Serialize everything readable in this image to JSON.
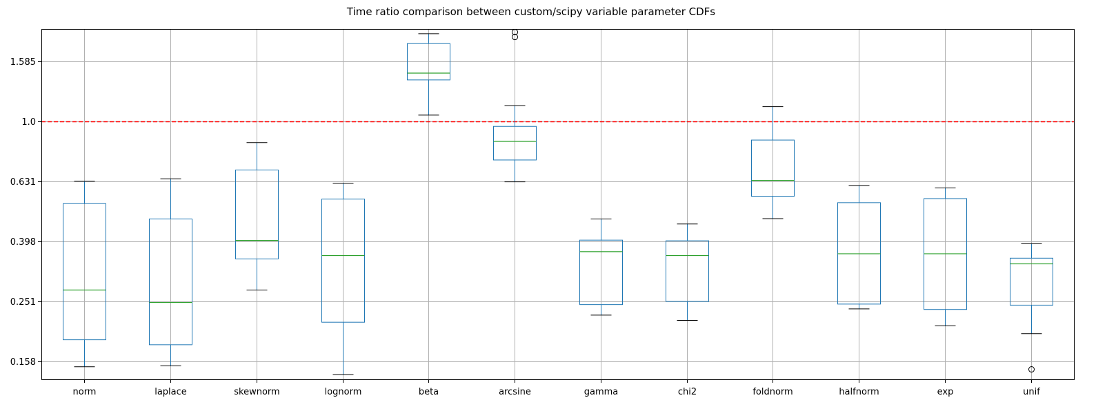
{
  "chart_data": {
    "type": "box",
    "title": "Time ratio comparison between custom/scipy variable parameter CDFs",
    "yscale": "log",
    "ylim": [
      0.138,
      2.035
    ],
    "y_ticks": [
      0.158,
      0.251,
      0.398,
      0.631,
      1.0,
      1.585
    ],
    "y_tick_labels": [
      "0.158",
      "0.251",
      "0.398",
      "0.631",
      "1.0",
      "1.585"
    ],
    "grid": true,
    "reference_line": {
      "y": 1.0,
      "color": "#ff0000",
      "style": "dashed"
    },
    "colors": {
      "box": "#1f77b4",
      "median": "#2ca02c",
      "whisker": "#1f77b4",
      "cap": "#000000",
      "outlier": "#000000"
    },
    "categories": [
      "norm",
      "laplace",
      "skewnorm",
      "lognorm",
      "beta",
      "arcsine",
      "gamma",
      "chi2",
      "foldnorm",
      "halfnorm",
      "exp",
      "unif"
    ],
    "boxes": [
      {
        "label": "norm",
        "whislo": 0.152,
        "q1": 0.187,
        "med": 0.274,
        "q3": 0.532,
        "whishi": 0.632,
        "fliers": []
      },
      {
        "label": "laplace",
        "whislo": 0.153,
        "q1": 0.18,
        "med": 0.249,
        "q3": 0.473,
        "whishi": 0.644,
        "fliers": []
      },
      {
        "label": "skewnorm",
        "whislo": 0.274,
        "q1": 0.348,
        "med": 0.401,
        "q3": 0.689,
        "whishi": 0.85,
        "fliers": []
      },
      {
        "label": "lognorm",
        "whislo": 0.143,
        "q1": 0.214,
        "med": 0.357,
        "q3": 0.551,
        "whishi": 0.622,
        "fliers": []
      },
      {
        "label": "beta",
        "whislo": 1.05,
        "q1": 1.376,
        "med": 1.45,
        "q3": 1.819,
        "whishi": 1.962,
        "fliers": []
      },
      {
        "label": "arcsine",
        "whislo": 0.629,
        "q1": 0.744,
        "med": 0.858,
        "q3": 0.963,
        "whishi": 1.129,
        "fliers": [
          1.913,
          1.986
        ]
      },
      {
        "label": "gamma",
        "whislo": 0.226,
        "q1": 0.245,
        "med": 0.368,
        "q3": 0.402,
        "whishi": 0.473,
        "fliers": []
      },
      {
        "label": "chi2",
        "whislo": 0.217,
        "q1": 0.251,
        "med": 0.357,
        "q3": 0.4,
        "whishi": 0.455,
        "fliers": []
      },
      {
        "label": "foldnorm",
        "whislo": 0.474,
        "q1": 0.563,
        "med": 0.636,
        "q3": 0.867,
        "whishi": 1.121,
        "fliers": []
      },
      {
        "label": "halfnorm",
        "whislo": 0.237,
        "q1": 0.246,
        "med": 0.362,
        "q3": 0.536,
        "whishi": 0.612,
        "fliers": []
      },
      {
        "label": "exp",
        "whislo": 0.208,
        "q1": 0.236,
        "med": 0.362,
        "q3": 0.553,
        "whishi": 0.6,
        "fliers": []
      },
      {
        "label": "unif",
        "whislo": 0.196,
        "q1": 0.244,
        "med": 0.335,
        "q3": 0.35,
        "whishi": 0.391,
        "fliers": [
          0.149
        ]
      }
    ]
  }
}
